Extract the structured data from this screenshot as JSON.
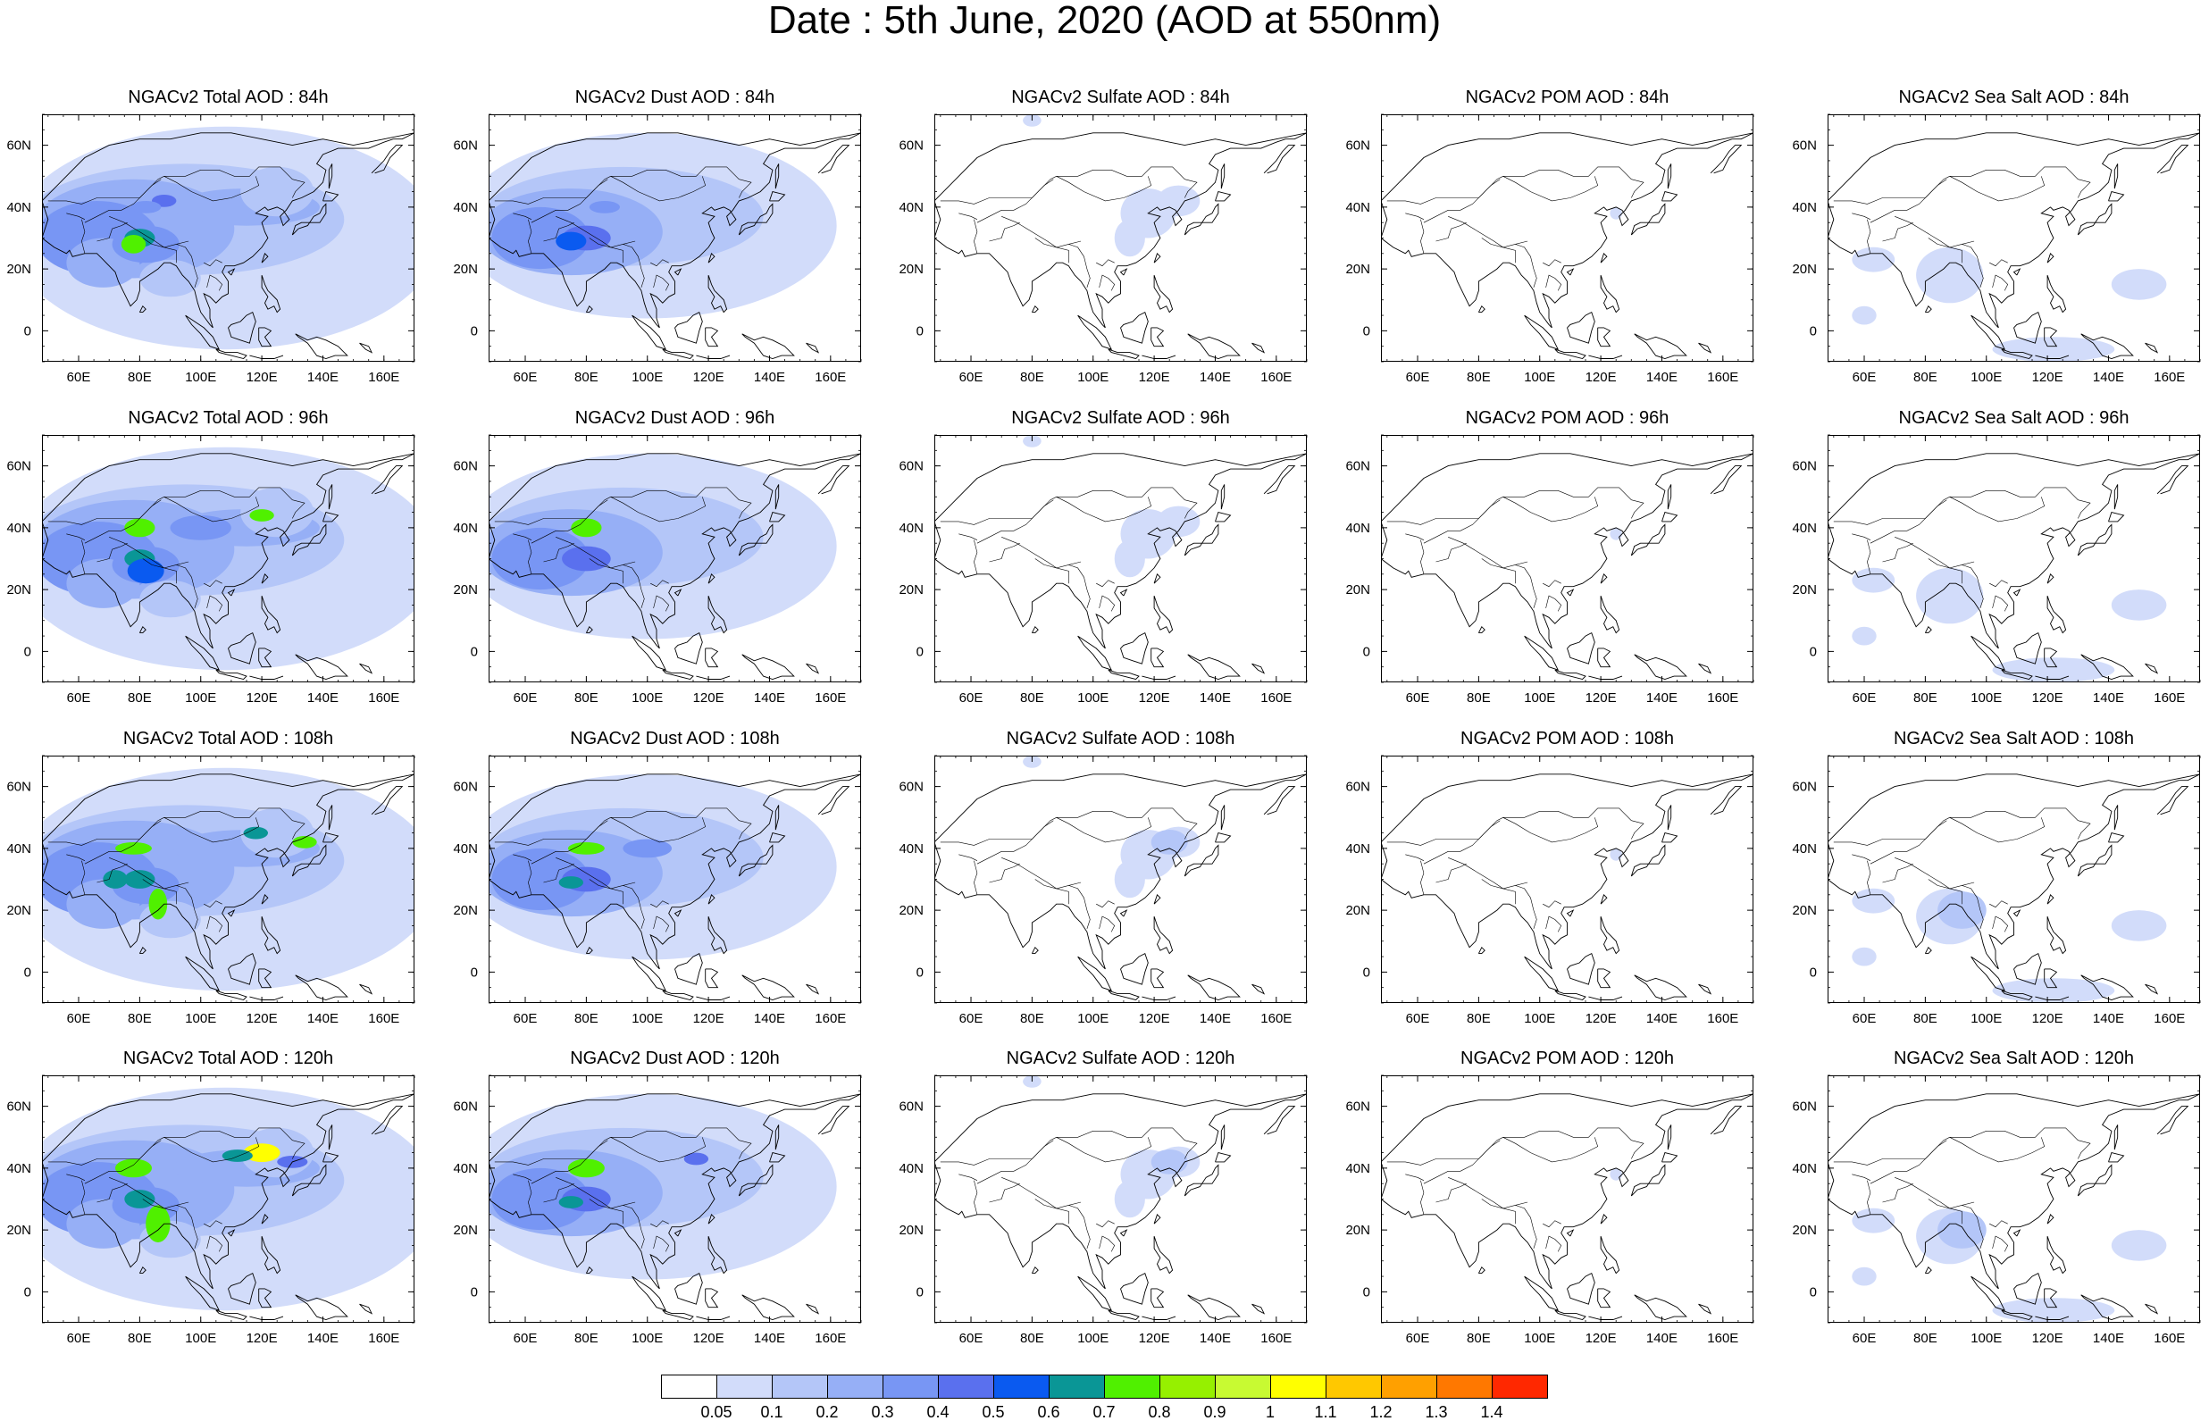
{
  "title": "Date : 5th June, 2020 (AOD at 550nm)",
  "panel_titles": [
    [
      "NGACv2 Total AOD : 84h",
      "NGACv2 Dust AOD : 84h",
      "NGACv2 Sulfate AOD : 84h",
      "NGACv2 POM AOD : 84h",
      "NGACv2 Sea Salt AOD : 84h"
    ],
    [
      "NGACv2 Total AOD : 96h",
      "NGACv2 Dust AOD : 96h",
      "NGACv2 Sulfate AOD : 96h",
      "NGACv2 POM AOD : 96h",
      "NGACv2 Sea Salt AOD : 96h"
    ],
    [
      "NGACv2 Total AOD : 108h",
      "NGACv2 Dust AOD : 108h",
      "NGACv2 Sulfate AOD : 108h",
      "NGACv2 POM AOD : 108h",
      "NGACv2 Sea Salt AOD : 108h"
    ],
    [
      "NGACv2 Total AOD : 120h",
      "NGACv2 Dust AOD : 120h",
      "NGACv2 Sulfate AOD : 120h",
      "NGACv2 POM AOD : 120h",
      "NGACv2 Sea Salt  AOD : 120h"
    ]
  ],
  "map_extent": {
    "lon": [
      48,
      170
    ],
    "lat": [
      -10,
      70
    ]
  },
  "x_ticks": [
    60,
    80,
    100,
    120,
    140,
    160
  ],
  "x_tick_labels": [
    "60E",
    "80E",
    "100E",
    "120E",
    "140E",
    "160E"
  ],
  "y_ticks": [
    0,
    20,
    40,
    60
  ],
  "y_tick_labels": [
    "0",
    "20N",
    "40N",
    "60N"
  ],
  "colorbar": {
    "colors": [
      "#ffffff",
      "#d2dcfa",
      "#b4c6f8",
      "#96aff6",
      "#7896f4",
      "#5a70ee",
      "#0a5af0",
      "#0a9696",
      "#50f000",
      "#96f000",
      "#c8fa32",
      "#ffff00",
      "#ffc800",
      "#ffa000",
      "#ff7800",
      "#ff2800"
    ],
    "labels": [
      "0.05",
      "0.1",
      "0.2",
      "0.3",
      "0.4",
      "0.5",
      "0.6",
      "0.7",
      "0.8",
      "0.9",
      "1",
      "1.1",
      "1.2",
      "1.3",
      "1.4"
    ]
  }
}
